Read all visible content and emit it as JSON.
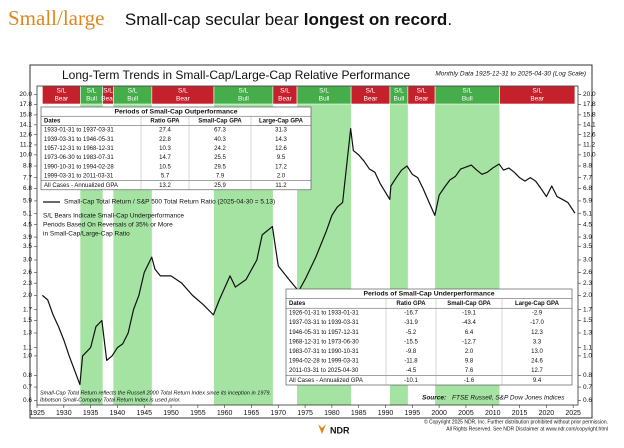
{
  "header": {
    "brand": "Small/large",
    "headline": [
      "Small-cap secular bear",
      "longest on record",
      "."
    ]
  },
  "chart_data": {
    "type": "line",
    "title": "Long-Term Trends in Small-Cap/Large-Cap Relative Performance",
    "subtitle": "Monthly Data 1925-12-31 to 2025-04-30 (Log Scale)",
    "log_scale": true,
    "grid": false,
    "xlim": [
      1925,
      2025.9
    ],
    "xticks": [
      1925,
      1930,
      1935,
      1940,
      1945,
      1950,
      1955,
      1960,
      1965,
      1970,
      1975,
      1980,
      1985,
      1990,
      1995,
      2000,
      2005,
      2010,
      2015,
      2020,
      2025
    ],
    "ylim": [
      0.57,
      22
    ],
    "yticks": [
      {
        "value": 20,
        "label": "20.0"
      },
      17.8,
      15.8,
      14.1,
      12.6,
      11.2,
      {
        "value": 10,
        "label": "10.0"
      },
      8.8,
      7.7,
      6.8,
      5.9,
      5.1,
      4.5,
      3.9,
      3.5,
      {
        "value": 3,
        "label": "3.0"
      },
      2.6,
      2.3,
      {
        "value": 2,
        "label": "2.0"
      },
      1.7,
      1.5,
      1.3,
      1.1,
      {
        "value": 1,
        "label": "1.0"
      },
      0.8,
      0.7,
      0.6
    ],
    "regimes": [
      {
        "start": 1926.0,
        "end": 1933.08,
        "label": [
          "S/L",
          "Bear"
        ],
        "color": "#c4212d",
        "fill": "none"
      },
      {
        "start": 1933.08,
        "end": 1937.25,
        "label": [
          "S/L",
          "Bull"
        ],
        "color": "#45ad4a",
        "fill": "#a5e3a2"
      },
      {
        "start": 1937.25,
        "end": 1939.25,
        "label": [
          "S/L",
          "Bear"
        ],
        "color": "#c4212d",
        "fill": "none"
      },
      {
        "start": 1939.25,
        "end": 1946.42,
        "label": [
          "S/L",
          "Bull"
        ],
        "color": "#45ad4a",
        "fill": "#a5e3a2"
      },
      {
        "start": 1946.42,
        "end": 1958.0,
        "label": [
          "S/L",
          "Bear"
        ],
        "color": "#c4212d",
        "fill": "none"
      },
      {
        "start": 1958.0,
        "end": 1969.0,
        "label": [
          "S/L",
          "Bull"
        ],
        "color": "#45ad4a",
        "fill": "#a5e3a2"
      },
      {
        "start": 1969.0,
        "end": 1973.5,
        "label": [
          "S/L",
          "Bear"
        ],
        "color": "#c4212d",
        "fill": "none"
      },
      {
        "start": 1973.5,
        "end": 1983.58,
        "label": [
          "S/L",
          "Bull"
        ],
        "color": "#45ad4a",
        "fill": "#a5e3a2"
      },
      {
        "start": 1983.58,
        "end": 1990.83,
        "label": [
          "S/L",
          "Bear"
        ],
        "color": "#c4212d",
        "fill": "none"
      },
      {
        "start": 1990.83,
        "end": 1994.17,
        "label": [
          "S/L",
          "Bull"
        ],
        "color": "#45ad4a",
        "fill": "#a5e3a2"
      },
      {
        "start": 1994.17,
        "end": 1999.25,
        "label": [
          "S/L",
          "Bear"
        ],
        "color": "#c4212d",
        "fill": "none"
      },
      {
        "start": 1999.25,
        "end": 2011.25,
        "label": [
          "S/L",
          "Bull"
        ],
        "color": "#45ad4a",
        "fill": "#a5e3a2"
      },
      {
        "start": 2011.25,
        "end": 2025.33,
        "label": [
          "S/L",
          "Bear"
        ],
        "color": "#c4212d",
        "fill": "none"
      }
    ],
    "series": [
      {
        "name": "Small-Cap Total Return / S&P 500 Total Return Ratio (2025-04-30 = 5.13)",
        "color": "#111111",
        "x": [
          1926,
          1927,
          1928,
          1929,
          1930,
          1931,
          1932,
          1933,
          1933.5,
          1935,
          1936,
          1937.1,
          1938,
          1939,
          1940,
          1941,
          1942,
          1943,
          1944,
          1945,
          1946.4,
          1947,
          1948,
          1950,
          1952,
          1954,
          1956,
          1957.9,
          1959,
          1961,
          1962,
          1964,
          1966,
          1967,
          1968.9,
          1970,
          1972,
          1973.8,
          1975,
          1977,
          1979,
          1980,
          1981,
          1982,
          1983.5,
          1984,
          1985,
          1986,
          1987,
          1988,
          1989,
          1990.8,
          1991,
          1992,
          1993,
          1994,
          1995,
          1996,
          1997,
          1998,
          1999.2,
          2000,
          2001,
          2002,
          2003,
          2004,
          2005,
          2006,
          2007,
          2008,
          2009,
          2010,
          2011.2,
          2012,
          2013,
          2014,
          2015,
          2016,
          2017,
          2018,
          2019,
          2020,
          2021,
          2022,
          2023,
          2024,
          2025.33
        ],
        "values": [
          2.0,
          1.9,
          1.6,
          1.4,
          1.2,
          1.0,
          0.85,
          0.72,
          1.0,
          1.1,
          1.4,
          1.5,
          0.95,
          1.0,
          1.1,
          1.15,
          1.3,
          1.7,
          2.0,
          2.6,
          3.1,
          2.7,
          2.5,
          2.5,
          2.3,
          2.0,
          1.8,
          1.6,
          1.9,
          2.5,
          2.2,
          2.4,
          3.0,
          4.0,
          4.4,
          2.8,
          2.4,
          2.1,
          2.4,
          3.1,
          4.2,
          5.0,
          5.5,
          5.8,
          13.5,
          10.5,
          10.0,
          9.3,
          8.5,
          8.2,
          7.2,
          6.0,
          7.0,
          7.7,
          8.4,
          8.8,
          8.0,
          7.7,
          6.8,
          5.9,
          5.0,
          6.3,
          6.9,
          7.5,
          7.8,
          8.5,
          8.7,
          8.9,
          8.4,
          8.0,
          8.2,
          8.6,
          9.0,
          8.4,
          8.6,
          8.2,
          7.7,
          7.4,
          7.7,
          7.4,
          6.8,
          6.2,
          7.0,
          6.2,
          6.0,
          5.8,
          5.13
        ]
      }
    ],
    "annotation": [
      "S/L Bears Indicate Small-Cap Underperformance",
      "Periods Based On Reversals of 35% or More",
      "in Small-Cap/Large-Cap Ratio"
    ],
    "tables": [
      {
        "title": "Periods of Small-Cap Outperformance",
        "columns": [
          "Dates",
          "Ratio GPA",
          "Small-Cap GPA",
          "Large-Cap GPA"
        ],
        "rows": [
          [
            "1933-01-31 to 1937-03-31",
            "27.4",
            "67.3",
            "31.3"
          ],
          [
            "1939-03-31 to 1946-05-31",
            "22.8",
            "40.3",
            "14.3"
          ],
          [
            "1957-12-31 to 1968-12-31",
            "10.3",
            "24.2",
            "12.6"
          ],
          [
            "1973-06-30 to 1983-07-31",
            "14.7",
            "25.5",
            "9.5"
          ],
          [
            "1990-10-31 to 1994-02-28",
            "10.5",
            "29.5",
            "17.2"
          ],
          [
            "1999-03-31 to 2011-03-31",
            "5.7",
            "7.9",
            "2.0"
          ],
          [
            "All Cases - Annualized GPA",
            "13.2",
            "25.9",
            "11.2"
          ]
        ]
      },
      {
        "title": "Periods of Small-Cap Underperformance",
        "columns": [
          "Dates",
          "Ratio GPA",
          "Small-Cap GPA",
          "Large-Cap GPA"
        ],
        "rows": [
          [
            "1926-01-31 to 1933-01-31",
            "-16.7",
            "-19.1",
            "-2.9"
          ],
          [
            "1937-03-31 to 1939-03-31",
            "-31.9",
            "-43.4",
            "-17.0"
          ],
          [
            "1946-05-31 to 1957-12-31",
            "-5.2",
            "6.4",
            "12.3"
          ],
          [
            "1968-12-31 to 1973-06-30",
            "-15.5",
            "-12.7",
            "3.3"
          ],
          [
            "1983-07-31 to 1990-10-31",
            "-9.8",
            "2.0",
            "13.0"
          ],
          [
            "1994-02-28 to 1999-03-31",
            "-11.8",
            "9.8",
            "24.6"
          ],
          [
            "2011-03-31 to 2025-04-30",
            "-4.5",
            "7.6",
            "12.7"
          ],
          [
            "All Cases - Annualized GPA",
            "-10.1",
            "-1.6",
            "9.4"
          ]
        ]
      }
    ],
    "notes": [
      "Small-Cap Total Return reflects the Russell 2000 Total Return Index since its inception in 1979.",
      "Ibbotson Small-Company Total Return Index is used prior."
    ],
    "source_label": "Source:",
    "source": "FTSE Russell, S&P Dow Jones Indices"
  },
  "footer": {
    "logo": "NDR",
    "copyright": [
      "© Copyright 2025 NDR, Inc. Further distribution prohibited without prior permission.",
      "All Rights Reserved. See NDR Disclaimer at www.ndr.com/copyright.html"
    ]
  }
}
